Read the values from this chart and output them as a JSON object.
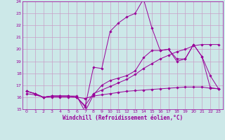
{
  "background_color": "#cce8e8",
  "grid_color": "#c8a0c8",
  "line_color": "#990099",
  "xlabel": "Windchill (Refroidissement éolien,°C)",
  "xlim": [
    -0.5,
    23.5
  ],
  "ylim": [
    15,
    24
  ],
  "yticks": [
    15,
    16,
    17,
    18,
    19,
    20,
    21,
    22,
    23,
    24
  ],
  "xticks": [
    0,
    1,
    2,
    3,
    4,
    5,
    6,
    7,
    8,
    9,
    10,
    11,
    12,
    13,
    14,
    15,
    16,
    17,
    18,
    19,
    20,
    21,
    22,
    23
  ],
  "series": [
    {
      "x": [
        0,
        1,
        2,
        3,
        4,
        5,
        6,
        7,
        8,
        9,
        10,
        11,
        12,
        13,
        14,
        15,
        16,
        17,
        18,
        19,
        20,
        21,
        22,
        23
      ],
      "y": [
        16.5,
        16.3,
        16.0,
        16.1,
        16.1,
        16.1,
        16.1,
        14.8,
        16.2,
        17.0,
        17.4,
        17.6,
        17.8,
        18.2,
        19.3,
        19.9,
        19.9,
        20.0,
        19.2,
        19.2,
        20.4,
        19.4,
        16.8,
        16.7
      ]
    },
    {
      "x": [
        0,
        1,
        2,
        3,
        4,
        5,
        6,
        7,
        8,
        9,
        10,
        11,
        12,
        13,
        14,
        15,
        16,
        17,
        18,
        19,
        20,
        21,
        22,
        23
      ],
      "y": [
        16.5,
        16.3,
        16.0,
        16.1,
        16.1,
        16.1,
        16.0,
        15.2,
        18.5,
        18.4,
        21.5,
        22.2,
        22.7,
        23.0,
        24.2,
        21.8,
        19.9,
        20.0,
        19.0,
        19.2,
        20.4,
        19.4,
        17.8,
        16.7
      ]
    },
    {
      "x": [
        0,
        1,
        2,
        3,
        4,
        5,
        6,
        7,
        8,
        9,
        10,
        11,
        12,
        13,
        14,
        15,
        16,
        17,
        18,
        19,
        20,
        21,
        22,
        23
      ],
      "y": [
        16.5,
        16.3,
        16.0,
        16.1,
        16.1,
        16.1,
        16.0,
        15.3,
        16.3,
        16.6,
        16.9,
        17.2,
        17.5,
        17.9,
        18.4,
        18.8,
        19.2,
        19.5,
        19.8,
        20.0,
        20.3,
        20.4,
        20.4,
        20.4
      ]
    },
    {
      "x": [
        0,
        1,
        2,
        3,
        4,
        5,
        6,
        7,
        8,
        9,
        10,
        11,
        12,
        13,
        14,
        15,
        16,
        17,
        18,
        19,
        20,
        21,
        22,
        23
      ],
      "y": [
        16.3,
        16.2,
        16.0,
        16.0,
        16.0,
        16.0,
        16.0,
        15.9,
        16.1,
        16.2,
        16.3,
        16.4,
        16.5,
        16.55,
        16.6,
        16.65,
        16.7,
        16.75,
        16.8,
        16.85,
        16.85,
        16.85,
        16.75,
        16.7
      ]
    }
  ]
}
